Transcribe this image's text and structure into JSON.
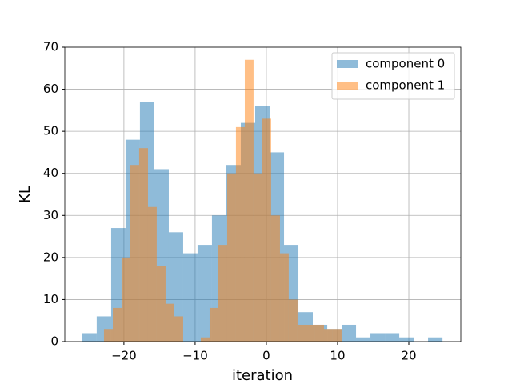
{
  "chart_data": {
    "type": "histogram",
    "xlabel": "iteration",
    "ylabel": "KL",
    "xlim": [
      -28.3,
      27.3
    ],
    "ylim": [
      0,
      70
    ],
    "xticks": [
      {
        "value": -20,
        "label": "−20"
      },
      {
        "value": -10,
        "label": "−10"
      },
      0,
      10,
      20
    ],
    "yticks": [
      0,
      10,
      20,
      30,
      40,
      50,
      60,
      70
    ],
    "grid": true,
    "legend": "upper right",
    "opacity": 0.5,
    "series": [
      {
        "name": "component 0",
        "color": "#1f77b4",
        "bins": [
          -25.84,
          -23.82,
          -21.79,
          -19.77,
          -17.75,
          -15.73,
          -13.7,
          -11.68,
          -9.66,
          -7.64,
          -5.61,
          -3.59,
          -1.57,
          0.46,
          2.48,
          4.5,
          6.52,
          8.55,
          10.57,
          12.59,
          14.61,
          16.64,
          18.66,
          20.68,
          22.7,
          24.73
        ],
        "values": [
          2,
          6,
          27,
          48,
          57,
          41,
          26,
          21,
          23,
          30,
          42,
          52,
          56,
          45,
          23,
          7,
          4,
          3,
          4,
          1,
          2,
          2,
          1,
          0,
          1
        ]
      },
      {
        "name": "component 1",
        "color": "#ff7f0e",
        "bins": [
          -22.8,
          -21.56,
          -20.33,
          -19.09,
          -17.86,
          -16.62,
          -15.39,
          -14.15,
          -12.92,
          -11.68,
          -10.44,
          -9.21,
          -7.97,
          -6.74,
          -5.5,
          -4.27,
          -3.03,
          -1.8,
          -0.56,
          0.67,
          1.91,
          3.14,
          4.38,
          5.62,
          6.85,
          8.09,
          9.32,
          10.56,
          11.79
        ],
        "values": [
          3,
          8,
          20,
          42,
          46,
          32,
          18,
          9,
          6,
          0,
          0,
          1,
          8,
          23,
          40,
          51,
          67,
          40,
          53,
          30,
          21,
          10,
          4,
          4,
          4,
          3,
          3,
          0
        ]
      }
    ]
  }
}
